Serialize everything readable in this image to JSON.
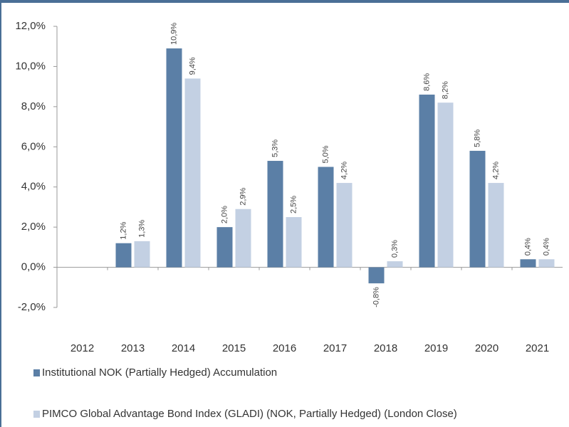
{
  "chart_data": {
    "type": "bar",
    "categories": [
      "2012",
      "2013",
      "2014",
      "2015",
      "2016",
      "2017",
      "2018",
      "2019",
      "2020",
      "2021"
    ],
    "series": [
      {
        "name": "Institutional NOK (Partially Hedged) Accumulation",
        "color": "#5b7fa6",
        "values": [
          null,
          1.2,
          10.9,
          2.0,
          5.3,
          5.0,
          -0.8,
          8.6,
          5.8,
          0.4
        ],
        "value_labels": [
          null,
          "1,2%",
          "10,9%",
          "2,0%",
          "5,3%",
          "5,0%",
          "-0,8%",
          "8,6%",
          "5,8%",
          "0,4%"
        ]
      },
      {
        "name": "PIMCO Global Advantage Bond Index (GLADI) (NOK, Partially Hedged) (London Close)",
        "color": "#c3d0e3",
        "values": [
          null,
          1.3,
          9.4,
          2.9,
          2.5,
          4.2,
          0.3,
          8.2,
          4.2,
          0.4
        ],
        "value_labels": [
          null,
          "1,3%",
          "9,4%",
          "2,9%",
          "2,5%",
          "4,2%",
          "0,3%",
          "8,2%",
          "4,2%",
          "0,4%"
        ]
      }
    ],
    "ylim": [
      -2,
      12
    ],
    "yticks": [
      {
        "value": -2,
        "label": "-2,0%"
      },
      {
        "value": 0,
        "label": "0,0%"
      },
      {
        "value": 2,
        "label": "2,0%"
      },
      {
        "value": 4,
        "label": "4,0%"
      },
      {
        "value": 6,
        "label": "6,0%"
      },
      {
        "value": 8,
        "label": "8,0%"
      },
      {
        "value": 10,
        "label": "10,0%"
      },
      {
        "value": 12,
        "label": "12,0%"
      }
    ],
    "grid": false,
    "legend": "bottom"
  }
}
